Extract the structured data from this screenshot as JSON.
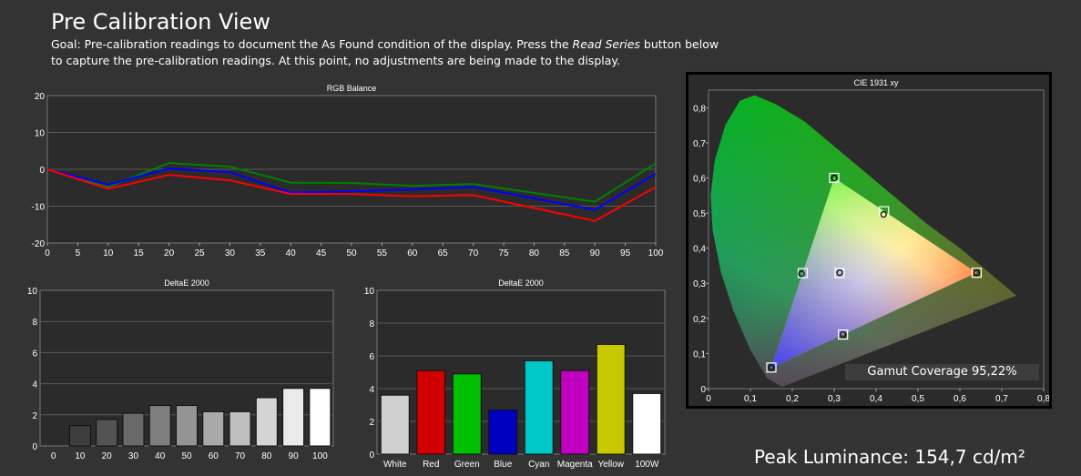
{
  "page": {
    "title": "Pre Calibration View",
    "goal_prefix": "Goal: Pre-calibration readings to document the As Found condition of the display. Press the ",
    "goal_emphasis": "Read Series",
    "goal_suffix": " button below to capture the pre-calibration readings. At this point, no adjustments are being made to the display.",
    "peak_luminance": "Peak Luminance: 154,7 cd/m²",
    "gamut_coverage": "Gamut Coverage 95,22%"
  },
  "colors": {
    "background": "#333333",
    "plot_background": "#2b2b2b",
    "red": "#ff0000",
    "green": "#008000",
    "blue": "#0000ff"
  },
  "chart_data": [
    {
      "id": "rgb",
      "type": "line",
      "title": "RGB Balance",
      "x": [
        0,
        10,
        20,
        30,
        40,
        50,
        60,
        70,
        90,
        100
      ],
      "xticks": [
        "0",
        "5",
        "10",
        "15",
        "20",
        "25",
        "30",
        "35",
        "40",
        "45",
        "50",
        "55",
        "60",
        "65",
        "70",
        "75",
        "80",
        "85",
        "90",
        "95",
        "100"
      ],
      "yticks": [
        "20",
        "10",
        "0",
        "-10",
        "-20"
      ],
      "xlim": [
        0,
        100
      ],
      "ylim": [
        -20,
        20
      ],
      "grid": true,
      "series": [
        {
          "color": "#008000",
          "values": [
            0,
            -4.8,
            1.7,
            0.7,
            -3.6,
            -3.7,
            -4.5,
            -4.0,
            -8.8,
            1.6
          ]
        },
        {
          "color": "#0000ff",
          "values": [
            0,
            -4.2,
            0.2,
            -0.8,
            -6.3,
            -6.0,
            -5.5,
            -4.8,
            -11.0,
            -1.2
          ]
        },
        {
          "color": "#ff0000",
          "values": [
            0,
            -5.3,
            -1.5,
            -3.0,
            -6.7,
            -6.7,
            -7.3,
            -7.0,
            -14.0,
            -4.8
          ]
        }
      ]
    },
    {
      "id": "de_gray",
      "type": "bar",
      "title": "DeltaE 2000",
      "categories": [
        "0",
        "10",
        "20",
        "30",
        "40",
        "50",
        "60",
        "70",
        "80",
        "90",
        "100"
      ],
      "values": [
        0,
        1.3,
        1.7,
        2.1,
        2.6,
        2.6,
        2.2,
        2.2,
        3.1,
        3.7,
        3.7
      ],
      "yticks": [
        "10",
        "8",
        "6",
        "4",
        "2",
        "0"
      ],
      "ylim": [
        0,
        10
      ],
      "grid": true
    },
    {
      "id": "de_color",
      "type": "bar",
      "title": "DeltaE 2000",
      "categories": [
        "White",
        "Red",
        "Green",
        "Blue",
        "Cyan",
        "Magenta",
        "Yellow",
        "100W"
      ],
      "values": [
        3.6,
        5.1,
        4.9,
        2.7,
        5.7,
        5.1,
        6.7,
        3.7
      ],
      "colors": [
        "#d0d0d0",
        "#d00000",
        "#00c000",
        "#0000c0",
        "#00c8c8",
        "#c000c0",
        "#c8c800",
        "#ffffff"
      ],
      "yticks": [
        "10",
        "8",
        "6",
        "4",
        "2",
        "0"
      ],
      "ylim": [
        0,
        10
      ],
      "grid": true
    },
    {
      "id": "cie",
      "type": "scatter",
      "title": "CIE 1931 xy",
      "xticks": [
        "0",
        "0,1",
        "0,2",
        "0,3",
        "0,4",
        "0,5",
        "0,6",
        "0,7",
        "0,8"
      ],
      "yticks": [
        "0,8",
        "0,7",
        "0,6",
        "0,5",
        "0,4",
        "0,3",
        "0,2",
        "0,1",
        "0"
      ],
      "xlim": [
        0,
        0.8
      ],
      "ylim": [
        0,
        0.85
      ],
      "targets": [
        {
          "name": "red",
          "x": 0.64,
          "y": 0.33
        },
        {
          "name": "green",
          "x": 0.3,
          "y": 0.6
        },
        {
          "name": "blue",
          "x": 0.15,
          "y": 0.06
        },
        {
          "name": "cyan",
          "x": 0.225,
          "y": 0.329
        },
        {
          "name": "magenta",
          "x": 0.321,
          "y": 0.154
        },
        {
          "name": "yellow",
          "x": 0.419,
          "y": 0.505
        },
        {
          "name": "white",
          "x": 0.3127,
          "y": 0.329
        }
      ],
      "measured": [
        {
          "name": "red",
          "x": 0.64,
          "y": 0.33
        },
        {
          "name": "green",
          "x": 0.3,
          "y": 0.6
        },
        {
          "name": "blue",
          "x": 0.15,
          "y": 0.06
        },
        {
          "name": "cyan",
          "x": 0.222,
          "y": 0.327
        },
        {
          "name": "magenta",
          "x": 0.321,
          "y": 0.154
        },
        {
          "name": "yellow",
          "x": 0.418,
          "y": 0.496
        },
        {
          "name": "white",
          "x": 0.313,
          "y": 0.33
        }
      ]
    }
  ]
}
